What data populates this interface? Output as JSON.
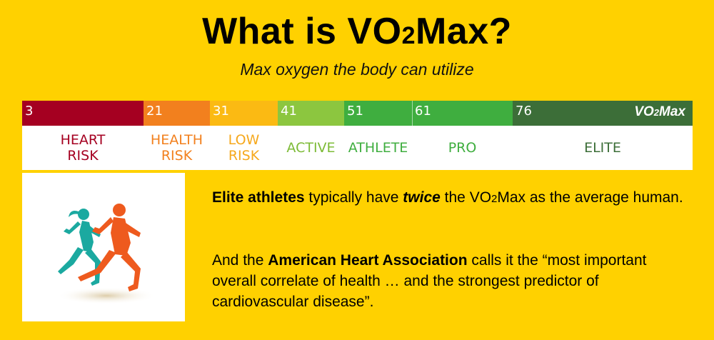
{
  "title": {
    "main": "What is VO",
    "sub": "2",
    "rest": "Max?"
  },
  "subtitle": "Max oxygen the body can utilize",
  "scale": {
    "bars": [
      {
        "start": "3",
        "label": "HEART\nRISK",
        "bar_color": "#A50021",
        "text_color": "#A50021"
      },
      {
        "start": "21",
        "label": "HEALTH\nRISK",
        "bar_color": "#F2801E",
        "text_color": "#F2801E"
      },
      {
        "start": "31",
        "label": "LOW\nRISK",
        "bar_color": "#FBBA13",
        "text_color": "#F6A81C"
      },
      {
        "start": "41",
        "label": "ACTIVE",
        "bar_color": "#8CC63F",
        "text_color": "#7DBB37"
      },
      {
        "start": "51",
        "label": "ATHLETE",
        "bar_color": "#3FAE3F",
        "text_color": "#3FAE3F"
      },
      {
        "start": "61",
        "label": "PRO",
        "bar_color": "#3FAE3F",
        "text_color": "#3FAE3F"
      },
      {
        "start": "76",
        "label": "ELITE",
        "bar_color": "#3C6E38",
        "text_color": "#3C6E38"
      }
    ],
    "axis_label": "VO",
    "axis_label_sub": "2",
    "axis_label_rest": "Max"
  },
  "image": {
    "icon": "runners-icon",
    "runner1_color": "#1BA9A0",
    "runner2_color": "#EE5A1E"
  },
  "paragraph1": {
    "bold1": "Elite athletes",
    "t1": " typically have ",
    "em": "twice",
    "t2": " the VO",
    "sub": "2",
    "t3": "Max as the average human."
  },
  "paragraph2": {
    "t1": "And the ",
    "bold": "American Heart Association",
    "t2": " calls it the “most important overall correlate of health … and the strongest predictor of cardiovascular disease”."
  }
}
